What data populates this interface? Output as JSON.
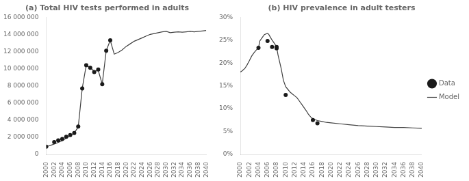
{
  "chart_data": [
    {
      "type": "line",
      "title": "(a) Total HIV tests performed in adults",
      "xlim": [
        2000,
        2040
      ],
      "xticks": [
        2000,
        2002,
        2004,
        2006,
        2008,
        2010,
        2012,
        2014,
        2016,
        2018,
        2020,
        2022,
        2024,
        2026,
        2028,
        2030,
        2032,
        2034,
        2036,
        2038,
        2040
      ],
      "ylim": [
        0,
        16000000
      ],
      "yticks": [
        0,
        {
          "value": 2000000,
          "label": "2 000 000"
        },
        {
          "value": 4000000,
          "label": "4 000 000"
        },
        {
          "value": 6000000,
          "label": "6 000 000"
        },
        {
          "value": 8000000,
          "label": "8 000 000"
        },
        {
          "value": 10000000,
          "label": "10 000 000"
        },
        {
          "value": 12000000,
          "label": "12 000 000"
        },
        {
          "value": 14000000,
          "label": "14 000 000"
        },
        {
          "value": 16000000,
          "label": "16 000 000"
        }
      ],
      "grid": false,
      "series": [
        {
          "name": "Model",
          "type": "line",
          "color": "#404040",
          "x": [
            2000,
            2001,
            2002,
            2003,
            2004,
            2005,
            2006,
            2007,
            2008,
            2009,
            2010,
            2011,
            2012,
            2013,
            2014,
            2015,
            2016,
            2017,
            2018,
            2019,
            2020,
            2021,
            2022,
            2023,
            2024,
            2025,
            2026,
            2027,
            2028,
            2029,
            2030,
            2031,
            2032,
            2033,
            2034,
            2035,
            2036,
            2037,
            2038,
            2039,
            2040
          ],
          "values": [
            900000,
            1050000,
            1200000,
            1400000,
            1600000,
            1900000,
            2200000,
            2500000,
            3200000,
            7700000,
            10400000,
            10100000,
            9700000,
            9800000,
            8200000,
            12100000,
            13300000,
            11700000,
            11900000,
            12200000,
            12600000,
            12900000,
            13200000,
            13400000,
            13600000,
            13800000,
            14000000,
            14100000,
            14200000,
            14300000,
            14350000,
            14200000,
            14250000,
            14300000,
            14250000,
            14300000,
            14350000,
            14300000,
            14350000,
            14400000,
            14450000
          ]
        },
        {
          "name": "Data",
          "type": "scatter",
          "color": "#1a1a1a",
          "marker": "o",
          "x": [
            2000,
            2002,
            2003,
            2004,
            2005,
            2006,
            2007,
            2008,
            2009,
            2010,
            2011,
            2012,
            2013,
            2014,
            2015,
            2016
          ],
          "values": [
            900000,
            1450000,
            1650000,
            1800000,
            2050000,
            2250000,
            2500000,
            3250000,
            7700000,
            10400000,
            10100000,
            9600000,
            9900000,
            8200000,
            12100000,
            13300000
          ]
        }
      ]
    },
    {
      "type": "line",
      "title": "(b) HIV prevalence in adult testers",
      "xlim": [
        2000,
        2040
      ],
      "xticks": [
        2000,
        2002,
        2004,
        2006,
        2008,
        2010,
        2012,
        2014,
        2016,
        2018,
        2020,
        2022,
        2024,
        2026,
        2028,
        2030,
        2032,
        2034,
        2036,
        2038,
        2040
      ],
      "ylim": [
        0,
        0.3
      ],
      "yticks": [
        {
          "value": 0.0,
          "label": "0%"
        },
        {
          "value": 0.05,
          "label": "5%"
        },
        {
          "value": 0.1,
          "label": "10%"
        },
        {
          "value": 0.15,
          "label": "15%"
        },
        {
          "value": 0.2,
          "label": "20%"
        },
        {
          "value": 0.25,
          "label": "25%"
        },
        {
          "value": 0.3,
          "label": "30%"
        }
      ],
      "grid": false,
      "legend": "right",
      "series": [
        {
          "name": "Model",
          "type": "line",
          "color": "#404040",
          "x": [
            2000,
            2000.3,
            2001,
            2001.5,
            2002,
            2002.5,
            2003,
            2003.5,
            2004,
            2004.3,
            2005,
            2005.3,
            2006,
            2006.3,
            2006.7,
            2007,
            2007.5,
            2008,
            2008.3,
            2009,
            2009.5,
            2010,
            2010.5,
            2011,
            2011.5,
            2012,
            2012.5,
            2013,
            2013.5,
            2014,
            2014.5,
            2015,
            2015.5,
            2016,
            2016.5,
            2017,
            2018,
            2019,
            2020,
            2022,
            2024,
            2026,
            2028,
            2030,
            2032,
            2034,
            2036,
            2038,
            2040
          ],
          "values": [
            0.18,
            0.182,
            0.188,
            0.196,
            0.205,
            0.215,
            0.222,
            0.228,
            0.233,
            0.248,
            0.258,
            0.262,
            0.265,
            0.262,
            0.255,
            0.25,
            0.243,
            0.235,
            0.218,
            0.188,
            0.162,
            0.148,
            0.142,
            0.136,
            0.132,
            0.128,
            0.124,
            0.117,
            0.11,
            0.103,
            0.096,
            0.088,
            0.082,
            0.078,
            0.076,
            0.074,
            0.072,
            0.07,
            0.069,
            0.067,
            0.065,
            0.063,
            0.062,
            0.061,
            0.06,
            0.059,
            0.059,
            0.058,
            0.057
          ]
        },
        {
          "name": "Data",
          "type": "scatter",
          "color": "#1a1a1a",
          "marker": "o",
          "x": [
            2004,
            2006,
            2007,
            2008,
            2008,
            2010,
            2016,
            2017
          ],
          "values": [
            0.233,
            0.248,
            0.235,
            0.232,
            0.235,
            0.13,
            0.075,
            0.068
          ]
        }
      ]
    }
  ]
}
